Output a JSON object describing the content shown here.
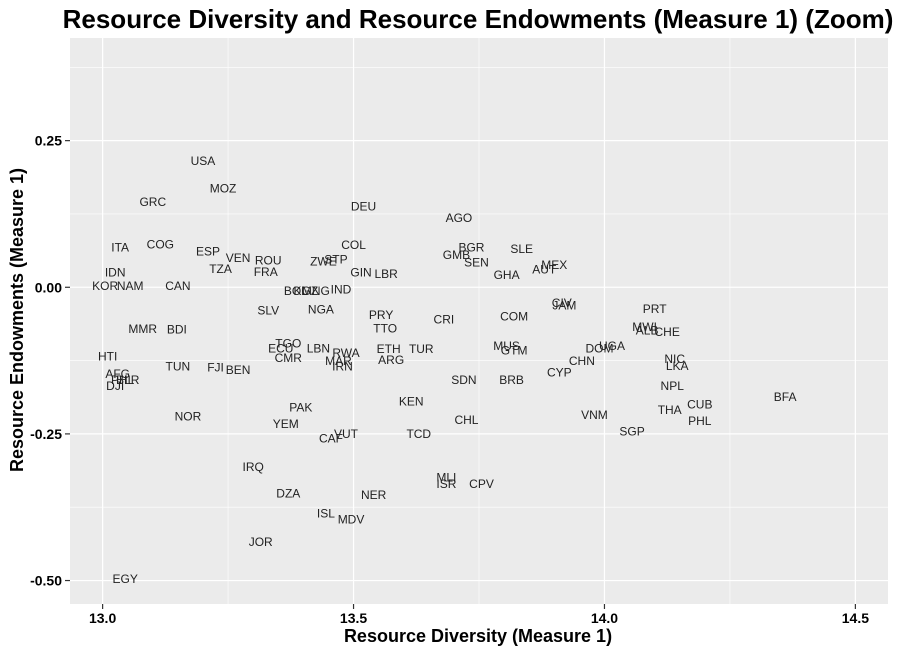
{
  "chart_data": {
    "type": "scatter",
    "title": "Resource Diversity and Resource Endowments (Measure 1) (Zoom)",
    "xlabel": "Resource Diversity (Measure 1)",
    "ylabel": "Resource Endowments (Measure 1)",
    "xlim": [
      12.935,
      14.565
    ],
    "ylim": [
      -0.54,
      0.425
    ],
    "xticks": [
      13.0,
      13.5,
      14.0,
      14.5
    ],
    "xtick_labels": [
      "13.0",
      "13.5",
      "14.0",
      "14.5"
    ],
    "yticks": [
      0.25,
      0.0,
      -0.25,
      -0.5
    ],
    "ytick_labels": [
      "0.25",
      "0.00",
      "-0.25",
      "-0.50"
    ],
    "grid": true,
    "background": "#ebebeb",
    "grid_color": "#ffffff",
    "points": [
      {
        "label": "USA",
        "x": 13.2,
        "y": 0.215
      },
      {
        "label": "MOZ",
        "x": 13.24,
        "y": 0.168
      },
      {
        "label": "GRC",
        "x": 13.1,
        "y": 0.145
      },
      {
        "label": "DEU",
        "x": 13.52,
        "y": 0.138
      },
      {
        "label": "AGO",
        "x": 13.71,
        "y": 0.118
      },
      {
        "label": "ITA",
        "x": 13.035,
        "y": 0.068
      },
      {
        "label": "COG",
        "x": 13.115,
        "y": 0.073
      },
      {
        "label": "ESP",
        "x": 13.21,
        "y": 0.061
      },
      {
        "label": "COL",
        "x": 13.5,
        "y": 0.072
      },
      {
        "label": "BGR",
        "x": 13.735,
        "y": 0.068
      },
      {
        "label": "SLE",
        "x": 13.835,
        "y": 0.065
      },
      {
        "label": "GMB",
        "x": 13.705,
        "y": 0.055
      },
      {
        "label": "VEN",
        "x": 13.27,
        "y": 0.05
      },
      {
        "label": "ROU",
        "x": 13.33,
        "y": 0.046
      },
      {
        "label": "ZWE",
        "x": 13.44,
        "y": 0.044
      },
      {
        "label": "STP",
        "x": 13.465,
        "y": 0.047
      },
      {
        "label": "SEN",
        "x": 13.745,
        "y": 0.042
      },
      {
        "label": "MEX",
        "x": 13.9,
        "y": 0.038
      },
      {
        "label": "AUT",
        "x": 13.88,
        "y": 0.03
      },
      {
        "label": "IDN",
        "x": 13.025,
        "y": 0.025
      },
      {
        "label": "TZA",
        "x": 13.235,
        "y": 0.031
      },
      {
        "label": "FRA",
        "x": 13.325,
        "y": 0.026
      },
      {
        "label": "GIN",
        "x": 13.515,
        "y": 0.025
      },
      {
        "label": "LBR",
        "x": 13.565,
        "y": 0.023
      },
      {
        "label": "GHA",
        "x": 13.805,
        "y": 0.021
      },
      {
        "label": "KOR",
        "x": 13.005,
        "y": 0.002
      },
      {
        "label": "NAM",
        "x": 13.055,
        "y": 0.002
      },
      {
        "label": "CAN",
        "x": 13.15,
        "y": 0.002
      },
      {
        "label": "BOL",
        "x": 13.385,
        "y": -0.006
      },
      {
        "label": "KGZ",
        "x": 13.405,
        "y": -0.006
      },
      {
        "label": "MNG",
        "x": 13.425,
        "y": -0.006
      },
      {
        "label": "IND",
        "x": 13.475,
        "y": -0.004
      },
      {
        "label": "CIV",
        "x": 13.915,
        "y": -0.027
      },
      {
        "label": "JAM",
        "x": 13.92,
        "y": -0.031
      },
      {
        "label": "PRT",
        "x": 14.1,
        "y": -0.037
      },
      {
        "label": "SLV",
        "x": 13.33,
        "y": -0.04
      },
      {
        "label": "NGA",
        "x": 13.435,
        "y": -0.038
      },
      {
        "label": "PRY",
        "x": 13.555,
        "y": -0.047
      },
      {
        "label": "COM",
        "x": 13.82,
        "y": -0.05
      },
      {
        "label": "CRI",
        "x": 13.68,
        "y": -0.055
      },
      {
        "label": "MMR",
        "x": 13.08,
        "y": -0.071
      },
      {
        "label": "BDI",
        "x": 13.148,
        "y": -0.072
      },
      {
        "label": "TTO",
        "x": 13.563,
        "y": -0.07
      },
      {
        "label": "MWI",
        "x": 14.08,
        "y": -0.068
      },
      {
        "label": "ALB",
        "x": 14.085,
        "y": -0.074
      },
      {
        "label": "CHE",
        "x": 14.125,
        "y": -0.076
      },
      {
        "label": "TGO",
        "x": 13.37,
        "y": -0.096
      },
      {
        "label": "ECU",
        "x": 13.355,
        "y": -0.104
      },
      {
        "label": "LBN",
        "x": 13.43,
        "y": -0.104
      },
      {
        "label": "MUS",
        "x": 13.805,
        "y": -0.1
      },
      {
        "label": "ETH",
        "x": 13.57,
        "y": -0.105
      },
      {
        "label": "TUR",
        "x": 13.635,
        "y": -0.105
      },
      {
        "label": "GTM",
        "x": 13.82,
        "y": -0.108
      },
      {
        "label": "DOM",
        "x": 13.99,
        "y": -0.104
      },
      {
        "label": "UGA",
        "x": 14.015,
        "y": -0.1
      },
      {
        "label": "RWA",
        "x": 13.485,
        "y": -0.112
      },
      {
        "label": "HTI",
        "x": 13.01,
        "y": -0.118
      },
      {
        "label": "CMR",
        "x": 13.37,
        "y": -0.121
      },
      {
        "label": "MAR",
        "x": 13.47,
        "y": -0.126
      },
      {
        "label": "IRN",
        "x": 13.478,
        "y": -0.135
      },
      {
        "label": "ARG",
        "x": 13.575,
        "y": -0.124
      },
      {
        "label": "CHN",
        "x": 13.955,
        "y": -0.126
      },
      {
        "label": "NIC",
        "x": 14.14,
        "y": -0.122
      },
      {
        "label": "LKA",
        "x": 14.145,
        "y": -0.134
      },
      {
        "label": "TUN",
        "x": 13.15,
        "y": -0.135
      },
      {
        "label": "FJI",
        "x": 13.225,
        "y": -0.137
      },
      {
        "label": "BEN",
        "x": 13.27,
        "y": -0.141
      },
      {
        "label": "CYP",
        "x": 13.91,
        "y": -0.145
      },
      {
        "label": "AFG",
        "x": 13.03,
        "y": -0.148
      },
      {
        "label": "PHL",
        "x": 13.04,
        "y": -0.158
      },
      {
        "label": "BLR",
        "x": 13.05,
        "y": -0.158
      },
      {
        "label": "DJI",
        "x": 13.025,
        "y": -0.168
      },
      {
        "label": "SDN",
        "x": 13.72,
        "y": -0.158
      },
      {
        "label": "BRB",
        "x": 13.815,
        "y": -0.158
      },
      {
        "label": "NPL",
        "x": 14.135,
        "y": -0.168
      },
      {
        "label": "BFA",
        "x": 14.36,
        "y": -0.187
      },
      {
        "label": "KEN",
        "x": 13.615,
        "y": -0.195
      },
      {
        "label": "CUB",
        "x": 14.19,
        "y": -0.2
      },
      {
        "label": "PAK",
        "x": 13.395,
        "y": -0.205
      },
      {
        "label": "THA",
        "x": 14.13,
        "y": -0.209
      },
      {
        "label": "NOR",
        "x": 13.17,
        "y": -0.22
      },
      {
        "label": "VNM",
        "x": 13.98,
        "y": -0.218
      },
      {
        "label": "CHL",
        "x": 13.725,
        "y": -0.226
      },
      {
        "label": "PHL",
        "x": 14.19,
        "y": -0.228
      },
      {
        "label": "YEM",
        "x": 13.365,
        "y": -0.233
      },
      {
        "label": "SGP",
        "x": 14.055,
        "y": -0.246
      },
      {
        "label": "TCD",
        "x": 13.63,
        "y": -0.25
      },
      {
        "label": "VUT",
        "x": 13.485,
        "y": -0.25
      },
      {
        "label": "CAF",
        "x": 13.455,
        "y": -0.258
      },
      {
        "label": "IRQ",
        "x": 13.3,
        "y": -0.306
      },
      {
        "label": "MLI",
        "x": 13.685,
        "y": -0.324
      },
      {
        "label": "ISR",
        "x": 13.685,
        "y": -0.335
      },
      {
        "label": "CPV",
        "x": 13.755,
        "y": -0.335
      },
      {
        "label": "DZA",
        "x": 13.37,
        "y": -0.352
      },
      {
        "label": "NER",
        "x": 13.54,
        "y": -0.354
      },
      {
        "label": "ISL",
        "x": 13.445,
        "y": -0.386
      },
      {
        "label": "MDV",
        "x": 13.495,
        "y": -0.396
      },
      {
        "label": "JOR",
        "x": 13.315,
        "y": -0.434
      },
      {
        "label": "EGY",
        "x": 13.045,
        "y": -0.497
      }
    ]
  }
}
